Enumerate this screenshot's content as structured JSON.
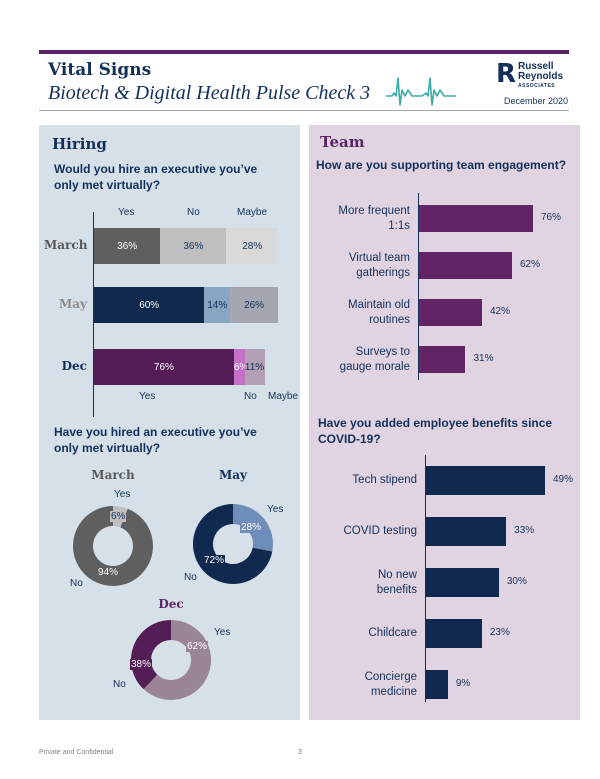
{
  "header": {
    "title": "Vital Signs",
    "subtitle": "Biotech & Digital Health Pulse Check 3",
    "logo": {
      "mark": "R",
      "line1": "Russell",
      "line2": "Reynolds",
      "line3": "ASSOCIATES"
    },
    "date": "December 2020",
    "icon": "heartbeat-ekg-icon"
  },
  "colors": {
    "brand_purple": "#5b2466",
    "navy": "#13305a",
    "teal": "#3aada6",
    "left_panel_bg": "#d6e0e9",
    "right_panel_bg": "#e1d4e2"
  },
  "hiring": {
    "title": "Hiring",
    "q1": "Would you hire an executive you’ve only met virtually?",
    "q2": "Have you hired an executive you’ve only met virtually?"
  },
  "team": {
    "title": "Team",
    "q1": "How are you supporting team engagement?",
    "q2": "Have you added employee benefits since COVID-19?"
  },
  "chart_data": [
    {
      "type": "bar",
      "stacked": true,
      "orientation": "horizontal",
      "title": "Would you hire an executive you’ve only met virtually?",
      "categories": [
        "March",
        "May",
        "Dec"
      ],
      "series": [
        {
          "name": "Yes",
          "values": [
            36,
            60,
            76
          ],
          "colors": [
            "#5f5f5f",
            "#0f2a4e",
            "#541d55"
          ]
        },
        {
          "name": "No",
          "values": [
            36,
            14,
            6
          ],
          "colors": [
            "#bfbfbf",
            "#87a6c1",
            "#c56fc8"
          ]
        },
        {
          "name": "Maybe",
          "values": [
            28,
            26,
            11
          ],
          "colors": [
            "#d9d9d9",
            "#a4a7b2",
            "#b3a0b4"
          ]
        }
      ],
      "labels": [
        [
          "36%",
          "36%",
          "28%"
        ],
        [
          "60%",
          "14%",
          "26%"
        ],
        [
          "76%",
          "6%",
          "11%"
        ]
      ],
      "legend_top": [
        "Yes",
        "No",
        "Maybe"
      ],
      "legend_bottom": [
        "Yes",
        "No",
        "Maybe"
      ],
      "unit": "%"
    },
    {
      "type": "pie",
      "donut": true,
      "title": "March",
      "slices": [
        {
          "name": "Yes",
          "value": 6,
          "label": "6%",
          "color": "#bfbfbf"
        },
        {
          "name": "No",
          "value": 94,
          "label": "94%",
          "color": "#5f5f5f"
        }
      ]
    },
    {
      "type": "pie",
      "donut": true,
      "title": "May",
      "slices": [
        {
          "name": "Yes",
          "value": 28,
          "label": "28%",
          "color": "#6e8db8"
        },
        {
          "name": "No",
          "value": 72,
          "label": "72%",
          "color": "#0f2a4e"
        }
      ]
    },
    {
      "type": "pie",
      "donut": true,
      "title": "Dec",
      "slices": [
        {
          "name": "Yes",
          "value": 62,
          "label": "62%",
          "color": "#998597"
        },
        {
          "name": "No",
          "value": 38,
          "label": "38%",
          "color": "#541d55"
        }
      ]
    },
    {
      "type": "bar",
      "orientation": "horizontal",
      "title": "How are you supporting team engagement?",
      "categories": [
        "More frequent 1:1s",
        "Virtual team gatherings",
        "Maintain old routines",
        "Surveys to gauge morale"
      ],
      "category_lines": [
        [
          "More frequent",
          "1:1s"
        ],
        [
          "Virtual team",
          "gatherings"
        ],
        [
          "Maintain old",
          "routines"
        ],
        [
          "Surveys to",
          "gauge morale"
        ]
      ],
      "values": [
        76,
        62,
        42,
        31
      ],
      "labels": [
        "76%",
        "62%",
        "42%",
        "31%"
      ],
      "color": "#632466",
      "unit": "%"
    },
    {
      "type": "bar",
      "orientation": "horizontal",
      "title": "Have you added employee benefits since COVID-19?",
      "categories": [
        "Tech stipend",
        "COVID testing",
        "No new benefits",
        "Childcare",
        "Concierge medicine"
      ],
      "category_lines": [
        [
          "Tech stipend"
        ],
        [
          "COVID testing"
        ],
        [
          "No new",
          "benefits"
        ],
        [
          "Childcare"
        ],
        [
          "Concierge",
          "medicine"
        ]
      ],
      "values": [
        49,
        33,
        30,
        23,
        9
      ],
      "labels": [
        "49%",
        "33%",
        "30%",
        "23%",
        "9%"
      ],
      "color": "#0f2a4e",
      "unit": "%"
    }
  ],
  "footer": {
    "left": "Private and Confidential",
    "page": "3"
  }
}
